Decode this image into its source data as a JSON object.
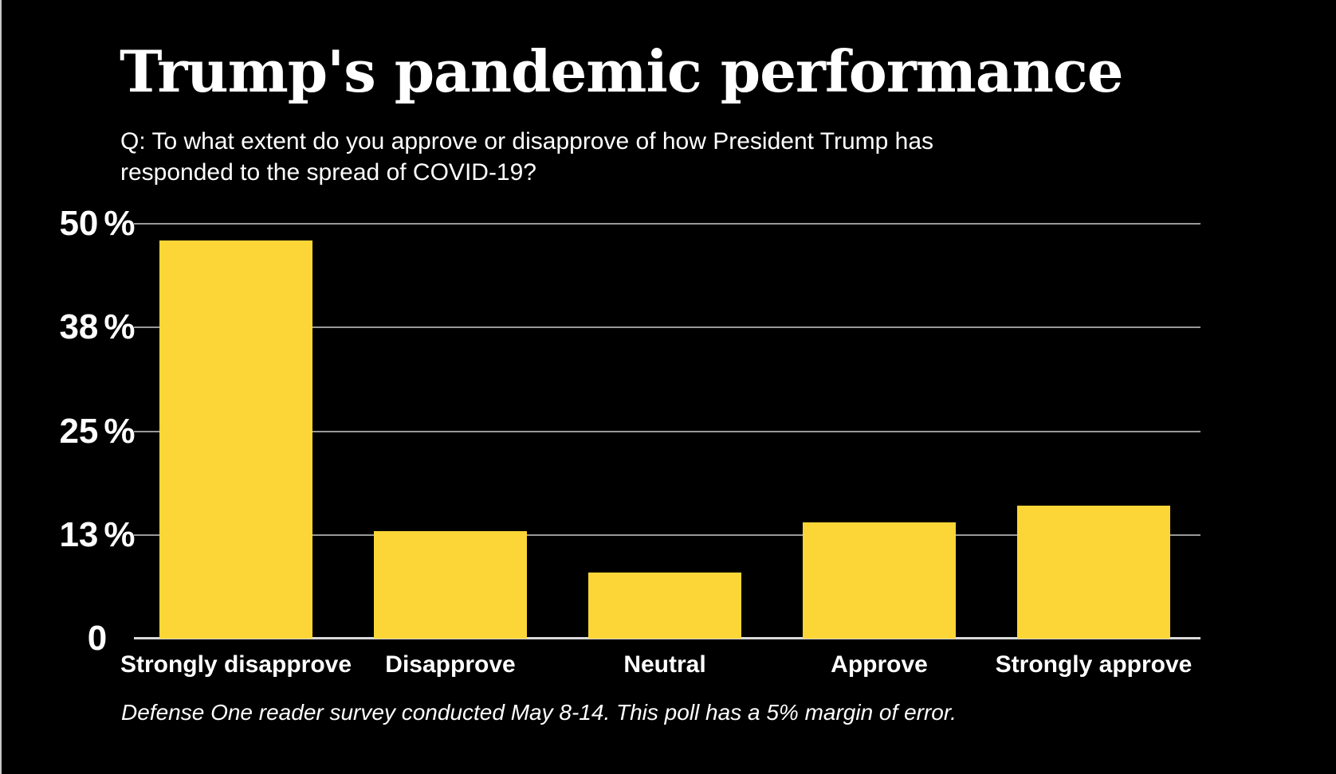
{
  "chart_data": {
    "type": "bar",
    "title": "Trump's pandemic performance",
    "subtitle_lines": [
      "Q: To what extent do you approve or disapprove of how President Trump has",
      "responded to the spread of COVID-19?"
    ],
    "categories": [
      "Strongly disapprove",
      "Disapprove",
      "Neutral",
      "Approve",
      "Strongly approve"
    ],
    "values": [
      48,
      13,
      8,
      14,
      16
    ],
    "unit": "%",
    "ylim": [
      0,
      50
    ],
    "grid": true,
    "legend_position": "none",
    "yticks": [
      {
        "pos": 50,
        "num": "50",
        "suffix": "%"
      },
      {
        "pos": 37.5,
        "num": "38",
        "suffix": "%"
      },
      {
        "pos": 25,
        "num": "25",
        "suffix": "%"
      },
      {
        "pos": 12.5,
        "num": "13",
        "suffix": "%"
      },
      {
        "pos": 0,
        "num": "0",
        "suffix": ""
      }
    ],
    "footnote": "Defense One reader survey conducted May 8-14. This poll has a 5% margin of error."
  },
  "colors": {
    "background": "#000000",
    "bar": "#fbd636",
    "gridline": "#999999",
    "axis_line": "#d9d9d9",
    "text": "#ffffff"
  }
}
